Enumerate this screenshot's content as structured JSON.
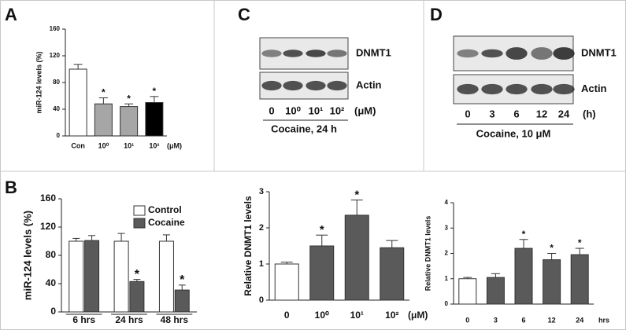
{
  "panel_labels": [
    "A",
    "B",
    "C",
    "D"
  ],
  "chart_data": [
    {
      "type": "bar",
      "y_label": "miR-124 levels (%)",
      "x_unit": "(μM)",
      "categories": [
        "Con",
        "10⁰",
        "10¹",
        "10²"
      ],
      "values": [
        100,
        48,
        44,
        50
      ],
      "errors": [
        7,
        9,
        4,
        9
      ],
      "colors": [
        "#ffffff",
        "#a6a6a6",
        "#a6a6a6",
        "#000000"
      ],
      "significance": [
        null,
        "*",
        "*",
        "*"
      ],
      "ylim": [
        0,
        160
      ],
      "yticks": [
        0,
        40,
        80,
        120,
        160
      ]
    },
    {
      "type": "bar",
      "y_label": "miR-124 levels (%)",
      "categories": [
        "6 hrs",
        "24 hrs",
        "48 hrs"
      ],
      "series": [
        {
          "name": "Control",
          "color": "#ffffff",
          "values": [
            100,
            100,
            100
          ],
          "errors": [
            4,
            11,
            9
          ],
          "significance": [
            null,
            null,
            null
          ]
        },
        {
          "name": "Cocaine",
          "color": "#5a5a5a",
          "values": [
            101,
            43,
            31
          ],
          "errors": [
            7,
            3,
            7
          ],
          "significance": [
            null,
            "*",
            "*"
          ]
        }
      ],
      "ylim": [
        0,
        160
      ],
      "yticks": [
        0,
        40,
        80,
        120,
        160
      ],
      "legend": "top-right"
    },
    {
      "type": "bar",
      "y_label": "Relative DNMT1 levels",
      "x_unit": "(μM)",
      "categories": [
        "0",
        "10⁰",
        "10¹",
        "10²"
      ],
      "values": [
        1.0,
        1.5,
        2.35,
        1.45
      ],
      "errors": [
        0.05,
        0.3,
        0.42,
        0.2
      ],
      "colors": [
        "#ffffff",
        "#5a5a5a",
        "#5a5a5a",
        "#5a5a5a"
      ],
      "significance": [
        null,
        "*",
        "*",
        null
      ],
      "ylim": [
        0,
        3
      ],
      "yticks": [
        0,
        1,
        2,
        3
      ]
    },
    {
      "type": "bar",
      "y_label": "Relative DNMT1 levels",
      "x_unit": "hrs",
      "categories": [
        "0",
        "3",
        "6",
        "12",
        "24"
      ],
      "values": [
        1.0,
        1.05,
        2.2,
        1.75,
        1.95
      ],
      "errors": [
        0.05,
        0.15,
        0.35,
        0.25,
        0.25
      ],
      "colors": [
        "#ffffff",
        "#5a5a5a",
        "#5a5a5a",
        "#5a5a5a",
        "#5a5a5a"
      ],
      "significance": [
        null,
        null,
        "*",
        "*",
        "*"
      ],
      "ylim": [
        0,
        4
      ],
      "yticks": [
        0,
        1,
        2,
        3,
        4
      ]
    }
  ],
  "blots": [
    {
      "bands": [
        "DNMT1",
        "Actin"
      ],
      "lanes": [
        "0",
        "10⁰",
        "10¹",
        "10²"
      ],
      "unit": "(μM)",
      "treatment": "Cocaine, 24 h"
    },
    {
      "bands": [
        "DNMT1",
        "Actin"
      ],
      "lanes": [
        "0",
        "3",
        "6",
        "12",
        "24"
      ],
      "unit": "(h)",
      "treatment": "Cocaine, 10 μM"
    }
  ]
}
